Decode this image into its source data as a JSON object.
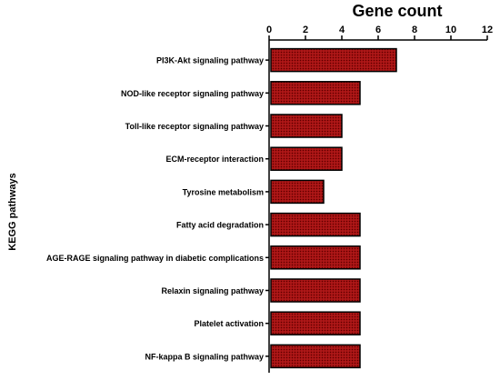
{
  "chart_data": {
    "type": "bar",
    "orientation": "horizontal",
    "title": "",
    "xlabel": "Gene count",
    "ylabel": "KEGG pathways",
    "x_axis_position": "top",
    "xlim": [
      0,
      12
    ],
    "xticks": [
      "0",
      "2",
      "4",
      "6",
      "8",
      "10",
      "12"
    ],
    "grid": false,
    "legend": "none",
    "bar_color": "#a01010",
    "categories": [
      "PI3K-Akt signaling pathway",
      "NOD-like receptor signaling pathway",
      "Toll-like receptor signaling pathway",
      "ECM-receptor interaction",
      "Tyrosine metabolism",
      "Fatty acid degradation",
      "AGE-RAGE signaling pathway in diabetic complications",
      "Relaxin signaling pathway",
      "Platelet activation",
      "NF-kappa B signaling pathway"
    ],
    "values": [
      7,
      5,
      4,
      4,
      3,
      5,
      5,
      5,
      5,
      5
    ]
  }
}
